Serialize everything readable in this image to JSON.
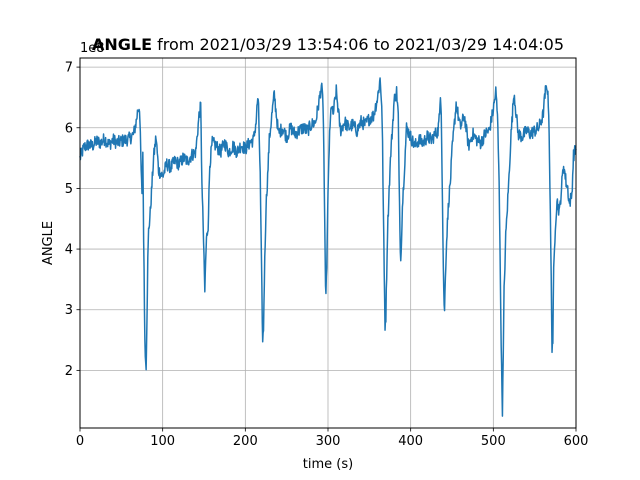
{
  "chart_data": {
    "type": "line",
    "title_bold": "ANGLE",
    "title_rest": " from 2021/03/29 13:54:06 to 2021/03/29 14:04:05",
    "xlabel": "time (s)",
    "ylabel": "ANGLE",
    "y_offset_text": "1e8",
    "xlim": [
      0,
      600
    ],
    "ylim": [
      1.05,
      7.15
    ],
    "x_ticks": [
      0,
      100,
      200,
      300,
      400,
      500,
      600
    ],
    "x_tick_labels": [
      "0",
      "100",
      "200",
      "300",
      "400",
      "500",
      "600"
    ],
    "y_ticks": [
      2,
      3,
      4,
      5,
      6,
      7
    ],
    "y_tick_labels": [
      "2",
      "3",
      "4",
      "5",
      "6",
      "7"
    ],
    "grid": true,
    "series": [
      {
        "color": "#1f77b4",
        "x": [
          0,
          5,
          10,
          15,
          20,
          25,
          30,
          35,
          40,
          45,
          50,
          55,
          60,
          65,
          68,
          70,
          72,
          74,
          75,
          76,
          77,
          78,
          79,
          80,
          81,
          82,
          83,
          85,
          87,
          89,
          92,
          95,
          100,
          105,
          110,
          115,
          120,
          125,
          130,
          135,
          140,
          144,
          146,
          147,
          148,
          149,
          150,
          151,
          152,
          153,
          155,
          157,
          160,
          165,
          170,
          175,
          180,
          185,
          190,
          195,
          200,
          205,
          210,
          213,
          215,
          216,
          218,
          219,
          220,
          221,
          222,
          223,
          224,
          225,
          227,
          229,
          232,
          235,
          240,
          245,
          250,
          255,
          260,
          265,
          270,
          275,
          280,
          285,
          290,
          292,
          294,
          295,
          296,
          297,
          298,
          299,
          300,
          301,
          302,
          304,
          306,
          310,
          315,
          320,
          325,
          330,
          335,
          340,
          345,
          350,
          355,
          360,
          363,
          365,
          366,
          367,
          368,
          369,
          370,
          371,
          372,
          374,
          376,
          378,
          380,
          383,
          385,
          386,
          387,
          388,
          390,
          395,
          400,
          405,
          410,
          415,
          420,
          425,
          430,
          433,
          435,
          436,
          437,
          438,
          439,
          440,
          441,
          442,
          444,
          446,
          448,
          450,
          455,
          460,
          465,
          470,
          475,
          480,
          485,
          490,
          495,
          500,
          503,
          505,
          507,
          508,
          509,
          510,
          511,
          512,
          513,
          515,
          517,
          519,
          521,
          525,
          530,
          535,
          540,
          545,
          550,
          555,
          560,
          563,
          565,
          567,
          568,
          569,
          570,
          571,
          572,
          573,
          575,
          577,
          580,
          583,
          585,
          586,
          588,
          590,
          592,
          595,
          597,
          600
        ],
        "y": [
          5.5,
          5.68,
          5.72,
          5.7,
          5.78,
          5.75,
          5.82,
          5.72,
          5.8,
          5.75,
          5.78,
          5.8,
          5.82,
          5.9,
          6.1,
          6.3,
          6.35,
          5.3,
          4.85,
          5.6,
          4.2,
          3.0,
          2.2,
          2.1,
          2.9,
          3.8,
          4.3,
          4.6,
          5.05,
          5.5,
          5.85,
          5.3,
          5.2,
          5.4,
          5.35,
          5.45,
          5.4,
          5.5,
          5.45,
          5.55,
          5.6,
          6.2,
          6.35,
          5.5,
          4.8,
          4.4,
          3.8,
          3.3,
          3.8,
          4.15,
          4.4,
          5.4,
          5.75,
          5.7,
          5.6,
          5.75,
          5.6,
          5.7,
          5.6,
          5.72,
          5.65,
          5.75,
          5.8,
          6.1,
          6.5,
          6.3,
          5.2,
          4.2,
          3.3,
          2.45,
          2.7,
          3.5,
          4.1,
          4.7,
          5.2,
          5.8,
          6.2,
          6.55,
          5.9,
          6.0,
          5.85,
          6.0,
          5.9,
          5.95,
          6.0,
          5.95,
          6.05,
          6.1,
          6.5,
          6.7,
          6.4,
          5.6,
          4.4,
          3.3,
          3.45,
          4.1,
          4.85,
          5.5,
          5.85,
          6.4,
          6.2,
          6.6,
          5.95,
          6.1,
          6.0,
          6.05,
          5.95,
          6.1,
          6.05,
          6.15,
          6.2,
          6.5,
          6.8,
          6.4,
          5.7,
          4.6,
          3.6,
          2.75,
          2.9,
          3.6,
          4.3,
          5.0,
          5.6,
          6.0,
          6.45,
          6.6,
          6.2,
          5.1,
          4.3,
          3.8,
          4.7,
          6.0,
          5.85,
          5.7,
          5.8,
          5.75,
          5.85,
          5.8,
          5.9,
          5.95,
          6.2,
          6.6,
          6.3,
          5.3,
          4.2,
          3.3,
          2.95,
          3.6,
          4.3,
          4.8,
          5.1,
          5.6,
          6.4,
          6.0,
          6.2,
          5.7,
          5.9,
          5.8,
          5.75,
          5.9,
          5.95,
          6.3,
          6.6,
          6.2,
          5.2,
          4.0,
          3.0,
          2.0,
          1.35,
          2.2,
          3.3,
          4.2,
          4.7,
          5.2,
          5.8,
          6.6,
          5.9,
          5.85,
          5.95,
          5.9,
          5.95,
          6.0,
          6.2,
          6.6,
          6.7,
          6.3,
          5.5,
          4.5,
          3.5,
          2.4,
          2.5,
          3.6,
          4.4,
          4.8,
          4.6,
          5.1,
          5.4,
          5.3,
          5.1,
          5.0,
          4.75,
          4.9,
          5.55,
          5.65
        ]
      }
    ]
  }
}
